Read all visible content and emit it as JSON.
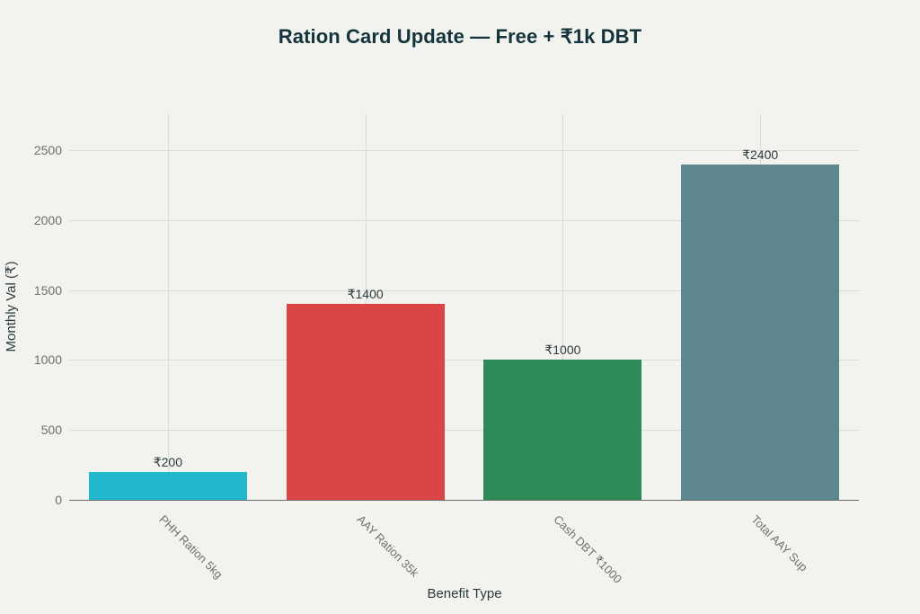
{
  "chart_data": {
    "type": "bar",
    "title": "Ration Card Update — Free + ₹1k DBT",
    "xlabel": "Benefit Type",
    "ylabel": "Monthly Val (₹)",
    "categories": [
      "PHH Ration 5kg",
      "AAY Ration 35k",
      "Cash DBT ₹1000",
      "Total AAY Sup"
    ],
    "values": [
      200,
      1400,
      1000,
      2400
    ],
    "data_labels": [
      "₹200",
      "₹1400",
      "₹1000",
      "₹2400"
    ],
    "colors": [
      "#21b8cd",
      "#db4545",
      "#2e8b57",
      "#5d8690"
    ],
    "yticks": [
      0,
      500,
      1000,
      1500,
      2000,
      2500
    ],
    "ylim": [
      0,
      2757
    ],
    "grid": true,
    "legend": "none"
  },
  "labels": {
    "title": "Ration Card Update — Free + ₹1k DBT",
    "xlabel": "Benefit Type",
    "ylabel": "Monthly Val (₹)",
    "yticks": [
      "0",
      "500",
      "1000",
      "1500",
      "2000",
      "2500"
    ],
    "categories": [
      "PHH Ration 5kg",
      "AAY Ration 35k",
      "Cash DBT ₹1000",
      "Total AAY Sup"
    ],
    "data_labels": [
      "₹200",
      "₹1400",
      "₹1000",
      "₹2400"
    ]
  }
}
